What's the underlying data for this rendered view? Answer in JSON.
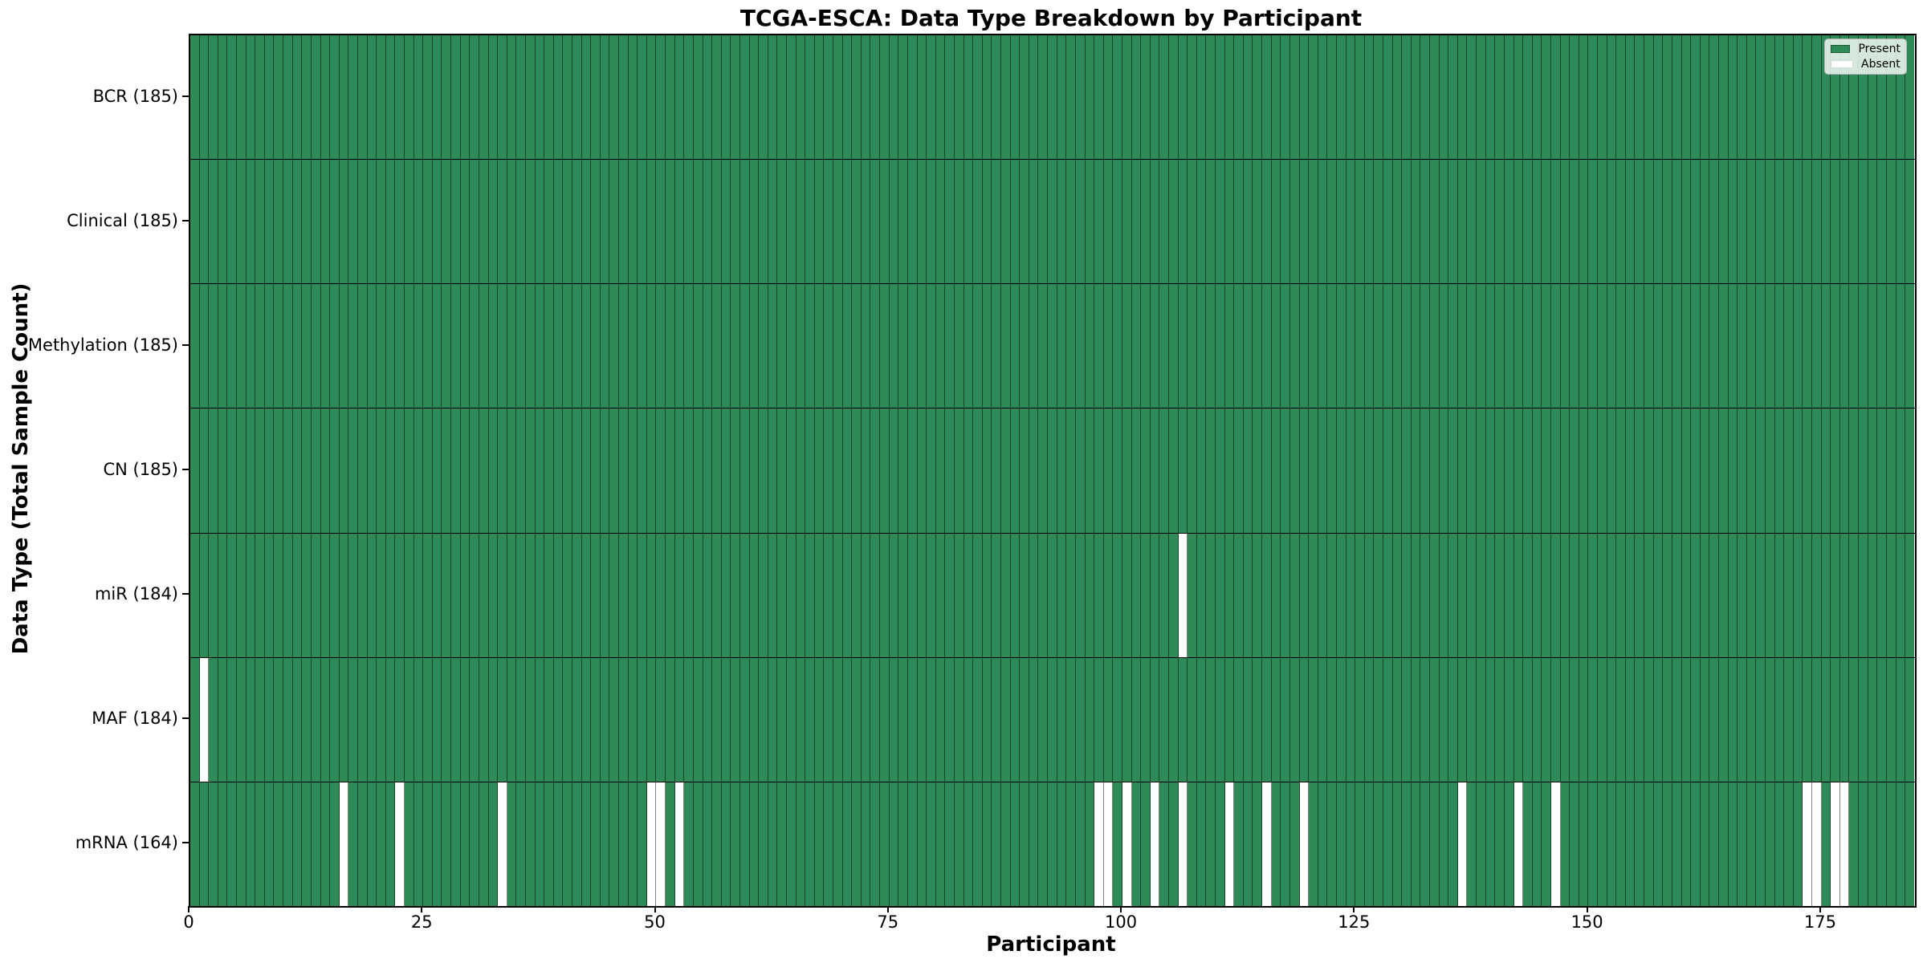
{
  "legend": {
    "present_label": "Present",
    "absent_label": "Absent"
  },
  "colors": {
    "present": "#2e8b57",
    "absent": "#ffffff",
    "cell_edge": "rgba(0,0,0,0.5)",
    "row_divider": "#000000",
    "spine": "#000000",
    "legend_border": "#b5b5b5",
    "present_swatch_edge": "#1f5c3a"
  },
  "chart_data": {
    "type": "heatmap",
    "title": "TCGA-ESCA: Data Type Breakdown by Participant",
    "xlabel": "Participant",
    "ylabel": "Data Type (Total Sample Count)",
    "x_ticks": [
      0,
      25,
      50,
      75,
      100,
      125,
      150,
      175
    ],
    "x_range": [
      0,
      185
    ],
    "n_participants": 185,
    "cell_states": [
      "Present",
      "Absent"
    ],
    "legend_position": "upper right",
    "grid": false,
    "rows": [
      {
        "label": "BCR (185)",
        "data_type": "BCR",
        "present_count": 185,
        "absent_participants": []
      },
      {
        "label": "Clinical (185)",
        "data_type": "Clinical",
        "present_count": 185,
        "absent_participants": []
      },
      {
        "label": "Methylation (185)",
        "data_type": "Methylation",
        "present_count": 185,
        "absent_participants": []
      },
      {
        "label": "CN (185)",
        "data_type": "CN",
        "present_count": 185,
        "absent_participants": []
      },
      {
        "label": "miR (184)",
        "data_type": "miR",
        "present_count": 184,
        "absent_participants": [
          106
        ]
      },
      {
        "label": "MAF (184)",
        "data_type": "MAF",
        "present_count": 184,
        "absent_participants": [
          1
        ]
      },
      {
        "label": "mRNA (164)",
        "data_type": "mRNA",
        "present_count": 164,
        "absent_participants": [
          16,
          22,
          33,
          49,
          50,
          52,
          97,
          98,
          100,
          103,
          106,
          111,
          115,
          119,
          136,
          142,
          146,
          173,
          174,
          176,
          177
        ]
      }
    ]
  }
}
